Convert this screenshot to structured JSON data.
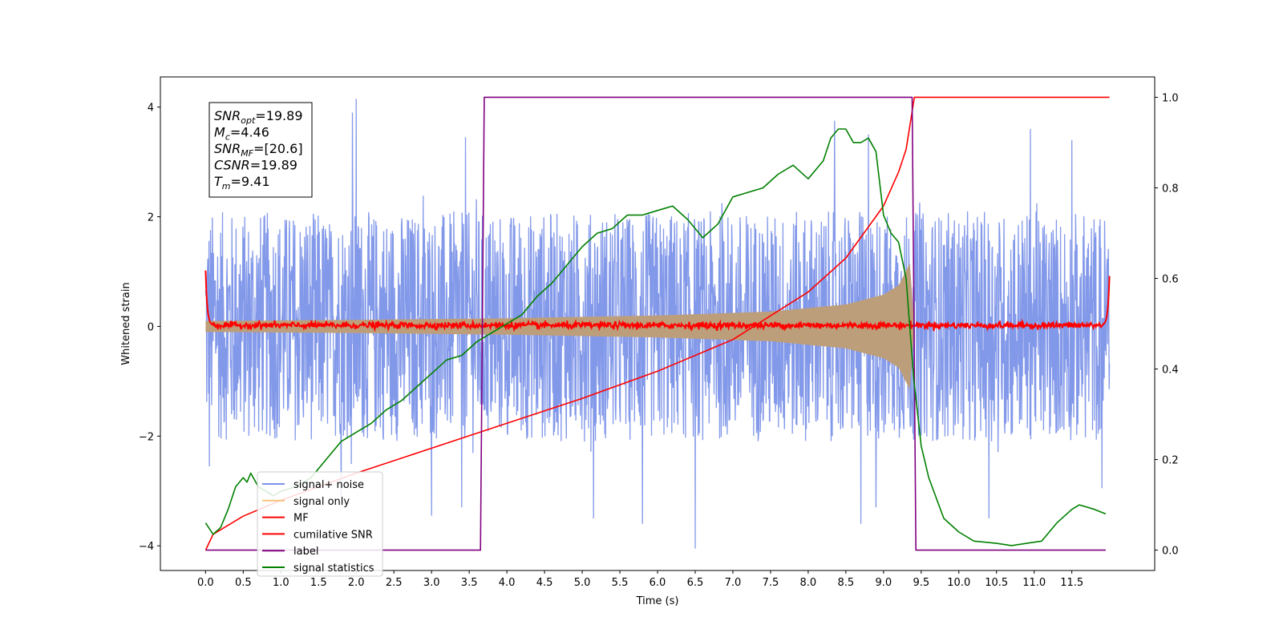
{
  "chart_data": {
    "type": "line",
    "xlabel": "Time (s)",
    "ylabel": "Whitened strain",
    "xlim": [
      -0.6,
      12.6
    ],
    "ylim": [
      -4.45,
      4.55
    ],
    "y2lim": [
      -0.045,
      1.045
    ],
    "x_ticks": [
      0.0,
      0.5,
      1.0,
      1.5,
      2.0,
      2.5,
      3.0,
      3.5,
      4.0,
      4.5,
      5.0,
      5.5,
      6.0,
      6.5,
      7.0,
      7.5,
      8.0,
      8.5,
      9.0,
      9.5,
      10.0,
      10.5,
      11.0,
      11.5
    ],
    "x_tick_labels": [
      "0.0",
      "0.5",
      "1.0",
      "1.5",
      "2.0",
      "2.5",
      "3.0",
      "3.5",
      "4.0",
      "4.5",
      "5.0",
      "5.5",
      "6.0",
      "6.5",
      "7.0",
      "7.5",
      "8.0",
      "8.5",
      "9.0",
      "9.5",
      "10.0",
      "10.5",
      "11.0",
      "11.5"
    ],
    "y_ticks": [
      4,
      2,
      0,
      -2,
      -4
    ],
    "y_tick_labels": [
      "4",
      "2",
      "0",
      "−2",
      "−4"
    ],
    "y2_ticks": [
      1.0,
      0.8,
      0.6,
      0.4,
      0.2,
      0.0
    ],
    "y2_tick_labels": [
      "1.0",
      "0.8",
      "0.6",
      "0.4",
      "0.2",
      "0.0"
    ],
    "annotation": [
      {
        "base": "SNR",
        "sub": "opt",
        "value": "=19.89"
      },
      {
        "base": "M",
        "sub": "c",
        "value": "=4.46"
      },
      {
        "base": "SNR",
        "sub": "MF",
        "value": "=[20.6]"
      },
      {
        "base": "CSNR",
        "sub": "",
        "value": "=19.89"
      },
      {
        "base": "T",
        "sub": "m",
        "value": "=9.41"
      }
    ],
    "legend_placement": "lower-left",
    "series": [
      {
        "name": "signal+ noise",
        "color": "#7b92e8",
        "axis": "left",
        "kind": "noise",
        "x_range": [
          0.0,
          12.0
        ],
        "amplitude": 2.1,
        "peaks": [
          [
            2.0,
            4.15
          ],
          [
            1.95,
            3.9
          ],
          [
            8.35,
            3.75
          ],
          [
            10.95,
            3.6
          ],
          [
            8.8,
            3.5
          ],
          [
            11.5,
            3.4
          ],
          [
            3.45,
            3.45
          ],
          [
            6.5,
            -4.05
          ],
          [
            8.7,
            -3.6
          ],
          [
            5.8,
            -3.6
          ],
          [
            10.4,
            -3.5
          ],
          [
            5.15,
            -3.5
          ],
          [
            3.0,
            -3.45
          ],
          [
            8.9,
            -3.3
          ],
          [
            3.4,
            -3.3
          ],
          [
            1.8,
            -3.1
          ],
          [
            11.9,
            -2.95
          ],
          [
            0.05,
            -2.55
          ]
        ]
      },
      {
        "name": "signal only",
        "color": "#f7c27a",
        "axis": "left",
        "kind": "envelope",
        "points": [
          [
            0.0,
            0.1
          ],
          [
            2.0,
            0.12
          ],
          [
            4.0,
            0.15
          ],
          [
            6.0,
            0.2
          ],
          [
            7.5,
            0.27
          ],
          [
            8.5,
            0.4
          ],
          [
            9.0,
            0.58
          ],
          [
            9.2,
            0.75
          ],
          [
            9.35,
            1.15
          ],
          [
            9.41,
            0.0
          ]
        ]
      },
      {
        "name": "MF",
        "color": "#ff0000",
        "axis": "left",
        "kind": "flat",
        "x_range": [
          0.0,
          12.0
        ],
        "level": 0.02,
        "jitter": 0.06,
        "edges": [
          [
            0.0,
            1.0
          ],
          [
            12.0,
            0.9
          ]
        ]
      },
      {
        "name": "cumilative SNR",
        "color": "#ff0000",
        "axis": "right",
        "points": [
          [
            0.0,
            0.0
          ],
          [
            0.1,
            0.035
          ],
          [
            0.5,
            0.075
          ],
          [
            1.0,
            0.11
          ],
          [
            2.0,
            0.17
          ],
          [
            3.0,
            0.225
          ],
          [
            4.0,
            0.28
          ],
          [
            5.0,
            0.335
          ],
          [
            6.0,
            0.395
          ],
          [
            7.0,
            0.465
          ],
          [
            8.0,
            0.57
          ],
          [
            8.5,
            0.645
          ],
          [
            9.0,
            0.76
          ],
          [
            9.2,
            0.835
          ],
          [
            9.3,
            0.885
          ],
          [
            9.41,
            1.0
          ],
          [
            12.0,
            1.0
          ]
        ]
      },
      {
        "name": "label",
        "color": "#800080",
        "axis": "right",
        "points": [
          [
            0.0,
            0.0
          ],
          [
            3.65,
            0.0
          ],
          [
            3.7,
            1.0
          ],
          [
            9.38,
            1.0
          ],
          [
            9.43,
            0.0
          ],
          [
            11.95,
            0.0
          ]
        ]
      },
      {
        "name": "signal statistics",
        "color": "#008000",
        "axis": "right",
        "points": [
          [
            0.0,
            0.06
          ],
          [
            0.1,
            0.035
          ],
          [
            0.2,
            0.05
          ],
          [
            0.3,
            0.09
          ],
          [
            0.4,
            0.14
          ],
          [
            0.5,
            0.16
          ],
          [
            0.55,
            0.15
          ],
          [
            0.6,
            0.17
          ],
          [
            0.7,
            0.14
          ],
          [
            0.8,
            0.13
          ],
          [
            0.9,
            0.12
          ],
          [
            1.0,
            0.13
          ],
          [
            1.2,
            0.14
          ],
          [
            1.4,
            0.16
          ],
          [
            1.6,
            0.2
          ],
          [
            1.8,
            0.24
          ],
          [
            2.0,
            0.26
          ],
          [
            2.2,
            0.28
          ],
          [
            2.4,
            0.31
          ],
          [
            2.6,
            0.33
          ],
          [
            2.8,
            0.36
          ],
          [
            3.0,
            0.39
          ],
          [
            3.2,
            0.42
          ],
          [
            3.4,
            0.43
          ],
          [
            3.6,
            0.46
          ],
          [
            3.8,
            0.48
          ],
          [
            4.0,
            0.5
          ],
          [
            4.2,
            0.52
          ],
          [
            4.4,
            0.56
          ],
          [
            4.6,
            0.59
          ],
          [
            4.8,
            0.63
          ],
          [
            5.0,
            0.67
          ],
          [
            5.2,
            0.7
          ],
          [
            5.4,
            0.71
          ],
          [
            5.6,
            0.74
          ],
          [
            5.8,
            0.74
          ],
          [
            6.0,
            0.75
          ],
          [
            6.2,
            0.76
          ],
          [
            6.4,
            0.73
          ],
          [
            6.6,
            0.69
          ],
          [
            6.8,
            0.72
          ],
          [
            7.0,
            0.78
          ],
          [
            7.2,
            0.79
          ],
          [
            7.4,
            0.8
          ],
          [
            7.6,
            0.83
          ],
          [
            7.8,
            0.85
          ],
          [
            8.0,
            0.82
          ],
          [
            8.2,
            0.86
          ],
          [
            8.3,
            0.91
          ],
          [
            8.4,
            0.93
          ],
          [
            8.5,
            0.93
          ],
          [
            8.6,
            0.9
          ],
          [
            8.7,
            0.9
          ],
          [
            8.8,
            0.91
          ],
          [
            8.9,
            0.88
          ],
          [
            9.0,
            0.74
          ],
          [
            9.1,
            0.7
          ],
          [
            9.2,
            0.68
          ],
          [
            9.3,
            0.6
          ],
          [
            9.4,
            0.38
          ],
          [
            9.5,
            0.23
          ],
          [
            9.6,
            0.16
          ],
          [
            9.8,
            0.07
          ],
          [
            10.0,
            0.04
          ],
          [
            10.2,
            0.02
          ],
          [
            10.5,
            0.015
          ],
          [
            10.7,
            0.01
          ],
          [
            10.9,
            0.015
          ],
          [
            11.1,
            0.02
          ],
          [
            11.3,
            0.06
          ],
          [
            11.5,
            0.09
          ],
          [
            11.6,
            0.1
          ],
          [
            11.8,
            0.09
          ],
          [
            11.95,
            0.08
          ]
        ]
      }
    ]
  }
}
